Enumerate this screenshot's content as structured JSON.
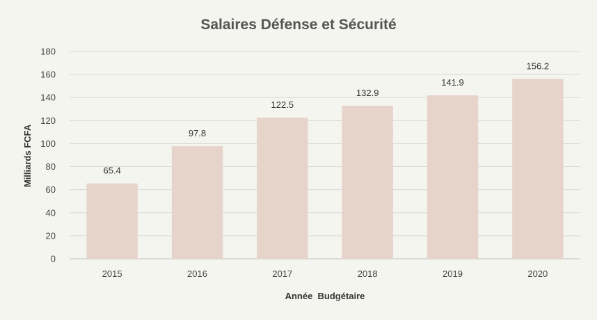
{
  "chart_data": {
    "type": "bar",
    "title": "Salaires Défense et Sécurité",
    "xlabel": "Année  Budgétaire",
    "ylabel": "Milliards FCFA",
    "categories": [
      "2015",
      "2016",
      "2017",
      "2018",
      "2019",
      "2020"
    ],
    "values": [
      65.4,
      97.8,
      122.5,
      132.9,
      141.9,
      156.2
    ],
    "value_labels": [
      "65.4",
      "97.8",
      "122.5",
      "132.9",
      "141.9",
      "156.2"
    ],
    "ylim": [
      0,
      180
    ],
    "yticks": [
      "0",
      "20",
      "40",
      "60",
      "80",
      "100",
      "120",
      "140",
      "160",
      "180"
    ],
    "grid": true,
    "legend": "none",
    "colors": {
      "bar": "#e6d4ca",
      "grid": "#d9d9d9",
      "background": "#f4f5ef"
    }
  }
}
